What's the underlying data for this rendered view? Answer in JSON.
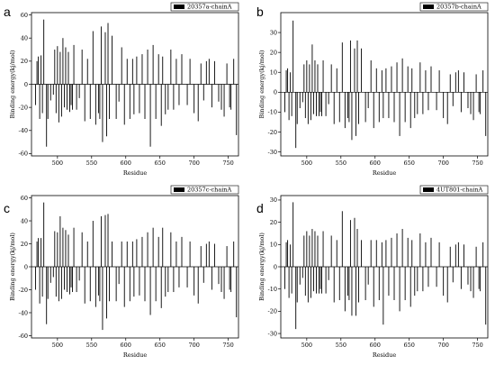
{
  "chart_data": [
    {
      "type": "bar",
      "panel": "a",
      "legend": "20357a-chainA",
      "xlabel": "Residue",
      "ylabel": "Binding energy(kj/mol)",
      "xlim": [
        462,
        765
      ],
      "ylim": [
        -62,
        62
      ],
      "xticks": [
        500,
        550,
        600,
        650,
        700,
        750
      ],
      "yticks": [
        -60,
        -40,
        -20,
        0,
        20,
        40,
        60
      ],
      "residues": [
        468,
        470,
        472,
        474,
        476,
        478,
        480,
        484,
        486,
        490,
        494,
        496,
        498,
        500,
        502,
        504,
        506,
        508,
        510,
        512,
        514,
        516,
        518,
        520,
        522,
        524,
        528,
        532,
        536,
        540,
        544,
        548,
        552,
        556,
        560,
        562,
        564,
        566,
        570,
        572,
        574,
        576,
        580,
        586,
        590,
        594,
        598,
        602,
        606,
        610,
        612,
        616,
        620,
        624,
        628,
        632,
        636,
        640,
        644,
        648,
        652,
        654,
        658,
        662,
        666,
        670,
        674,
        678,
        682,
        690,
        694,
        700,
        706,
        710,
        714,
        718,
        722,
        726,
        730,
        736,
        740,
        744,
        748,
        752,
        754,
        758,
        762
      ],
      "values": [
        -18,
        20,
        24,
        -30,
        25,
        -25,
        56,
        -54,
        -30,
        -14,
        -9,
        30,
        -25,
        33,
        -33,
        28,
        -28,
        40,
        -20,
        32,
        -22,
        28,
        -24,
        -18,
        -22,
        34,
        -22,
        -12,
        30,
        -32,
        22,
        -30,
        46,
        -35,
        -25,
        -30,
        50,
        -50,
        45,
        -45,
        53,
        -30,
        42,
        -30,
        -15,
        32,
        -35,
        22,
        -30,
        22,
        -26,
        24,
        -25,
        26,
        -30,
        30,
        -54,
        34,
        -30,
        26,
        -36,
        24,
        -26,
        -22,
        30,
        -22,
        22,
        -18,
        26,
        -18,
        22,
        -25,
        -32,
        18,
        -14,
        20,
        22,
        -20,
        20,
        -15,
        -22,
        -28,
        18,
        -20,
        -22,
        22,
        -44
      ]
    },
    {
      "type": "bar",
      "panel": "b",
      "legend": "20357b-chainA",
      "xlabel": "Residue",
      "ylabel": "Binding energy(kj/mol)",
      "xlim": [
        462,
        765
      ],
      "ylim": [
        -32,
        40
      ],
      "xticks": [
        500,
        550,
        600,
        650,
        700,
        750
      ],
      "yticks": [
        -30,
        -20,
        -10,
        0,
        10,
        20,
        30
      ],
      "residues": [
        468,
        470,
        472,
        474,
        476,
        478,
        480,
        484,
        486,
        490,
        494,
        496,
        498,
        500,
        502,
        504,
        506,
        508,
        510,
        512,
        514,
        516,
        518,
        520,
        522,
        524,
        528,
        532,
        536,
        540,
        544,
        548,
        552,
        556,
        560,
        562,
        564,
        566,
        570,
        572,
        574,
        576,
        580,
        586,
        590,
        594,
        598,
        602,
        606,
        610,
        612,
        616,
        620,
        624,
        628,
        632,
        636,
        640,
        644,
        648,
        652,
        654,
        658,
        662,
        666,
        670,
        674,
        678,
        682,
        690,
        694,
        700,
        706,
        710,
        714,
        718,
        722,
        726,
        730,
        736,
        740,
        744,
        748,
        752,
        754,
        758,
        762
      ],
      "values": [
        -10,
        11,
        12,
        -14,
        10,
        -12,
        36,
        -28,
        -16,
        -8,
        -5,
        14,
        -13,
        16,
        -16,
        14,
        -14,
        24,
        -11,
        16,
        -12,
        14,
        -12,
        -10,
        -12,
        16,
        -12,
        -6,
        14,
        -16,
        12,
        -15,
        25,
        -18,
        -13,
        -15,
        26,
        -24,
        22,
        -22,
        26,
        -16,
        22,
        -15,
        -8,
        16,
        -18,
        12,
        -15,
        11,
        -13,
        12,
        -13,
        13,
        -15,
        15,
        -22,
        17,
        -15,
        13,
        -18,
        12,
        -13,
        -11,
        15,
        -11,
        11,
        -9,
        13,
        -9,
        11,
        -13,
        -16,
        9,
        -7,
        10,
        11,
        -10,
        10,
        -8,
        -11,
        -14,
        9,
        -10,
        -11,
        11,
        -22
      ]
    },
    {
      "type": "bar",
      "panel": "c",
      "legend": "20357c-chainA",
      "xlabel": "Residue",
      "ylabel": "Binding energy(kj/mol)",
      "xlim": [
        462,
        765
      ],
      "ylim": [
        -62,
        62
      ],
      "xticks": [
        500,
        550,
        600,
        650,
        700,
        750
      ],
      "yticks": [
        -60,
        -40,
        -20,
        0,
        20,
        40,
        60
      ],
      "residues": [
        468,
        470,
        472,
        474,
        476,
        478,
        480,
        484,
        486,
        490,
        494,
        496,
        498,
        500,
        502,
        504,
        506,
        508,
        510,
        512,
        514,
        516,
        518,
        520,
        522,
        524,
        528,
        532,
        536,
        540,
        544,
        548,
        552,
        556,
        560,
        562,
        564,
        566,
        570,
        572,
        574,
        576,
        580,
        586,
        590,
        594,
        598,
        602,
        606,
        610,
        612,
        616,
        620,
        624,
        628,
        632,
        636,
        640,
        644,
        648,
        652,
        654,
        658,
        662,
        666,
        670,
        674,
        678,
        682,
        690,
        694,
        700,
        706,
        710,
        714,
        718,
        722,
        726,
        730,
        736,
        740,
        744,
        748,
        752,
        754,
        758,
        762
      ],
      "values": [
        -20,
        22,
        25,
        -32,
        25,
        -26,
        56,
        -50,
        -28,
        -14,
        -9,
        31,
        -26,
        30,
        -30,
        44,
        -28,
        34,
        -20,
        32,
        -22,
        28,
        -24,
        -18,
        -22,
        34,
        -22,
        -12,
        30,
        -32,
        22,
        -30,
        40,
        -35,
        -25,
        -30,
        44,
        -55,
        45,
        -45,
        46,
        -30,
        22,
        -30,
        -15,
        22,
        -35,
        22,
        -30,
        22,
        -26,
        24,
        -25,
        26,
        -30,
        30,
        -42,
        34,
        -30,
        26,
        -36,
        34,
        -26,
        -22,
        30,
        -22,
        22,
        -18,
        26,
        -18,
        22,
        -25,
        -32,
        18,
        -14,
        20,
        22,
        -20,
        20,
        -15,
        -22,
        -28,
        18,
        -20,
        -22,
        22,
        -44
      ]
    },
    {
      "type": "bar",
      "panel": "d",
      "legend": "4UT801-chainA",
      "xlabel": "Residue",
      "ylabel": "Binding energy(kj/mol)",
      "xlim": [
        462,
        765
      ],
      "ylim": [
        -32,
        32
      ],
      "xticks": [
        500,
        550,
        600,
        650,
        700,
        750
      ],
      "yticks": [
        -30,
        -20,
        -10,
        0,
        10,
        20,
        30
      ],
      "residues": [
        468,
        470,
        472,
        474,
        476,
        478,
        480,
        484,
        486,
        490,
        494,
        496,
        498,
        500,
        502,
        504,
        506,
        508,
        510,
        512,
        514,
        516,
        518,
        520,
        522,
        524,
        528,
        532,
        536,
        540,
        544,
        548,
        552,
        556,
        560,
        562,
        564,
        566,
        570,
        572,
        574,
        576,
        580,
        586,
        590,
        594,
        598,
        602,
        606,
        610,
        612,
        616,
        620,
        624,
        628,
        632,
        636,
        640,
        644,
        648,
        652,
        654,
        658,
        662,
        666,
        670,
        674,
        678,
        682,
        690,
        694,
        700,
        706,
        710,
        714,
        718,
        722,
        726,
        730,
        736,
        740,
        744,
        748,
        752,
        754,
        758,
        762
      ],
      "values": [
        -10,
        11,
        12,
        -14,
        10,
        -12,
        29,
        -28,
        -16,
        -8,
        -5,
        14,
        -13,
        16,
        -16,
        14,
        -14,
        17,
        -11,
        16,
        -12,
        14,
        -12,
        -10,
        -12,
        16,
        -12,
        -6,
        14,
        -16,
        12,
        -15,
        25,
        -20,
        -13,
        -15,
        21,
        -22,
        22,
        -22,
        17,
        -16,
        12,
        -15,
        -8,
        12,
        -18,
        12,
        -15,
        11,
        -26,
        12,
        -13,
        13,
        -15,
        15,
        -20,
        17,
        -15,
        13,
        -18,
        12,
        -13,
        -11,
        15,
        -11,
        11,
        -9,
        13,
        -9,
        11,
        -13,
        -16,
        9,
        -7,
        10,
        11,
        -10,
        10,
        -8,
        -11,
        -14,
        9,
        -10,
        -11,
        11,
        -26
      ]
    }
  ]
}
